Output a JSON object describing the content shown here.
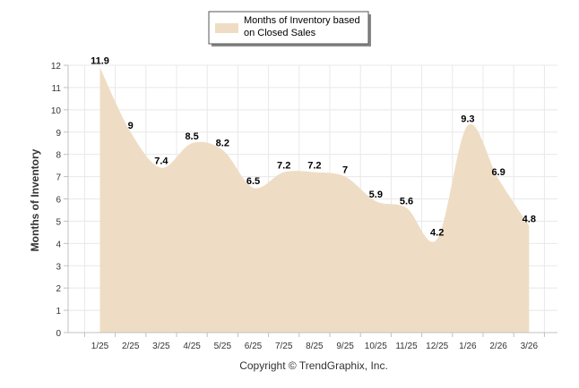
{
  "chart_data": {
    "type": "area",
    "categories": [
      "1/25",
      "2/25",
      "3/25",
      "4/25",
      "5/25",
      "6/25",
      "7/25",
      "8/25",
      "9/25",
      "10/25",
      "11/25",
      "12/25",
      "1/26",
      "2/26",
      "3/26"
    ],
    "series": [
      {
        "name": "Months of Inventory based on Closed Sales",
        "values": [
          11.9,
          9,
          7.4,
          8.5,
          8.2,
          6.5,
          7.2,
          7.2,
          7,
          5.9,
          5.6,
          4.2,
          9.3,
          6.9,
          4.8
        ],
        "data_labels": [
          "11.9",
          "9",
          "7.4",
          "8.5",
          "8.2",
          "6.5",
          "7.2",
          "7.2",
          "7",
          "5.9",
          "5.6",
          "4.2",
          "9.3",
          "6.9",
          "4.8"
        ],
        "color": "#eeddc4"
      }
    ],
    "title": "",
    "xlabel": "",
    "ylabel": "Months of Inventory",
    "ylim": [
      0,
      12
    ],
    "yticks": [
      "0",
      "1",
      "2",
      "3",
      "4",
      "5",
      "6",
      "7",
      "8",
      "9",
      "10",
      "11",
      "12"
    ],
    "grid": true,
    "legend": {
      "position": "top-center",
      "lines": [
        "Months of Inventory based",
        "on Closed Sales"
      ]
    }
  },
  "footer": {
    "copyright": "Copyright © TrendGraphix, Inc."
  },
  "colors": {
    "fill": "#eeddc4",
    "grid": "#e8e8e8",
    "axis": "#c0c0c0"
  }
}
